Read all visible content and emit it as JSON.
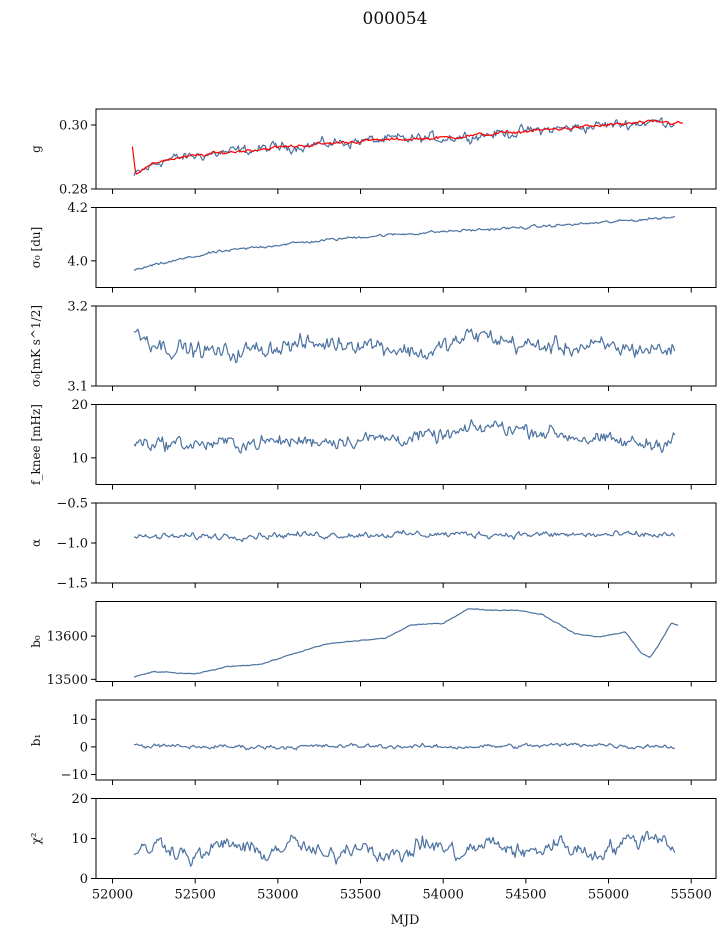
{
  "figure": {
    "title": "000054",
    "xlabel": "MJD"
  },
  "chart_data": {
    "type": "line",
    "title": "000054",
    "xlabel": "MJD",
    "xlim": [
      51900,
      55650
    ],
    "xticks": [
      52000,
      52500,
      53000,
      53500,
      54000,
      54500,
      55000,
      55500
    ],
    "xtick_labels": [
      "52000",
      "52500",
      "53000",
      "53500",
      "54000",
      "54500",
      "55000",
      "55500"
    ],
    "colors": {
      "primary": "#4c72a0",
      "highlight": "#ff0000"
    },
    "grid": false,
    "panels": [
      {
        "id": "g",
        "ylabel": "g",
        "ylim": [
          0.28,
          0.305
        ],
        "yticks": [
          0.28,
          0.3
        ],
        "ytick_labels": [
          "0.28",
          "0.30"
        ],
        "series": [
          {
            "color": "#4c72a0",
            "noise": 0.0012,
            "x": [
              52130,
              52300,
              52600,
              53000,
              53500,
              54000,
              54500,
              55000,
              55300,
              55400
            ],
            "y": [
              0.284,
              0.289,
              0.291,
              0.293,
              0.295,
              0.296,
              0.298,
              0.3,
              0.301,
              0.301
            ]
          },
          {
            "color": "#ff0000",
            "noise": 0.0004,
            "x": [
              52120,
              52140,
              52300,
              52600,
              53000,
              53500,
              54000,
              54500,
              55000,
              55300,
              55450
            ],
            "y": [
              0.293,
              0.285,
              0.289,
              0.291,
              0.293,
              0.295,
              0.296,
              0.298,
              0.3,
              0.301,
              0.3005
            ]
          }
        ]
      },
      {
        "id": "sigma0-du",
        "ylabel": "σ₀ [du]",
        "ylim": [
          3.9,
          4.2
        ],
        "yticks": [
          4.0,
          4.2
        ],
        "ytick_labels": [
          "4.0",
          "4.2"
        ],
        "series": [
          {
            "color": "#4c72a0",
            "noise": 0.004,
            "x": [
              52130,
              52300,
              52600,
              53000,
              53500,
              54000,
              54500,
              55000,
              55400
            ],
            "y": [
              3.965,
              3.99,
              4.03,
              4.06,
              4.09,
              4.11,
              4.125,
              4.145,
              4.165
            ]
          }
        ]
      },
      {
        "id": "sigma0-mk",
        "ylabel": "σ₀[mK s^1/2]",
        "ylim": [
          3.1,
          3.2
        ],
        "yticks": [
          3.1,
          3.2
        ],
        "ytick_labels": [
          "3.1",
          "3.2"
        ],
        "series": [
          {
            "color": "#4c72a0",
            "noise": 0.008,
            "x": [
              52130,
              52300,
              52700,
              53000,
              53500,
              53900,
              54200,
              54500,
              55000,
              55400
            ],
            "y": [
              3.17,
              3.15,
              3.14,
              3.15,
              3.155,
              3.14,
              3.165,
              3.15,
              3.148,
              3.145
            ]
          }
        ]
      },
      {
        "id": "fknee",
        "ylabel": "f_knee [mHz]",
        "ylim": [
          5,
          20
        ],
        "yticks": [
          10,
          20
        ],
        "ytick_labels": [
          "10",
          "20"
        ],
        "series": [
          {
            "color": "#4c72a0",
            "noise": 1.0,
            "x": [
              52130,
              52500,
              53000,
              53500,
              54000,
              54300,
              54600,
              55000,
              55300,
              55400
            ],
            "y": [
              13,
              12.5,
              13,
              13.5,
              14,
              16,
              15,
              13,
              12.5,
              14.5
            ]
          }
        ]
      },
      {
        "id": "alpha",
        "ylabel": "α",
        "ylim": [
          -1.5,
          -0.5
        ],
        "yticks": [
          -1.5,
          -1.0,
          -0.5
        ],
        "ytick_labels": [
          "−1.5",
          "−1.0",
          "−0.5"
        ],
        "series": [
          {
            "color": "#4c72a0",
            "noise": 0.03,
            "x": [
              52130,
              53000,
              54000,
              55000,
              55400
            ],
            "y": [
              -0.93,
              -0.9,
              -0.89,
              -0.9,
              -0.9
            ]
          }
        ]
      },
      {
        "id": "b0",
        "ylabel": "b₀",
        "ylim": [
          13495,
          13680
        ],
        "yticks": [
          13500,
          13600
        ],
        "ytick_labels": [
          "13500",
          "13600"
        ],
        "series": [
          {
            "color": "#4c72a0",
            "noise": 0.8,
            "x": [
              52130,
              52250,
              52500,
              52700,
              52900,
              53100,
              53300,
              53500,
              53650,
              53800,
              54000,
              54150,
              54300,
              54450,
              54600,
              54800,
              54950,
              55100,
              55200,
              55250,
              55300,
              55380,
              55420
            ],
            "y": [
              13505,
              13518,
              13512,
              13530,
              13535,
              13560,
              13582,
              13590,
              13595,
              13625,
              13630,
              13663,
              13660,
              13660,
              13650,
              13605,
              13598,
              13610,
              13560,
              13550,
              13578,
              13630,
              13625
            ]
          }
        ]
      },
      {
        "id": "b1",
        "ylabel": "b₁",
        "ylim": [
          -12,
          17
        ],
        "yticks": [
          -10,
          0,
          10
        ],
        "ytick_labels": [
          "−10",
          "0",
          "10"
        ],
        "series": [
          {
            "color": "#4c72a0",
            "noise": 0.6,
            "x": [
              52130,
              52500,
              53000,
              53500,
              54000,
              54500,
              54900,
              55050,
              55150,
              55250,
              55400
            ],
            "y": [
              0.5,
              0,
              0,
              0.3,
              0,
              0.3,
              1.0,
              0.5,
              0,
              0.5,
              0
            ]
          }
        ]
      },
      {
        "id": "chi2",
        "ylabel": "χ²",
        "ylim": [
          0,
          20
        ],
        "yticks": [
          0,
          10,
          20
        ],
        "ytick_labels": [
          "0",
          "10",
          "20"
        ],
        "series": [
          {
            "color": "#4c72a0",
            "noise": 1.5,
            "x": [
              52130,
              52300,
              52500,
              52700,
              52900,
              53100,
              53300,
              53500,
              53700,
              53900,
              54100,
              54300,
              54500,
              54700,
              54900,
              55100,
              55300,
              55400
            ],
            "y": [
              6,
              9,
              5,
              9,
              6,
              9,
              5,
              9,
              5,
              9,
              6,
              9,
              6,
              9,
              6,
              9,
              11,
              8
            ]
          }
        ]
      }
    ]
  }
}
